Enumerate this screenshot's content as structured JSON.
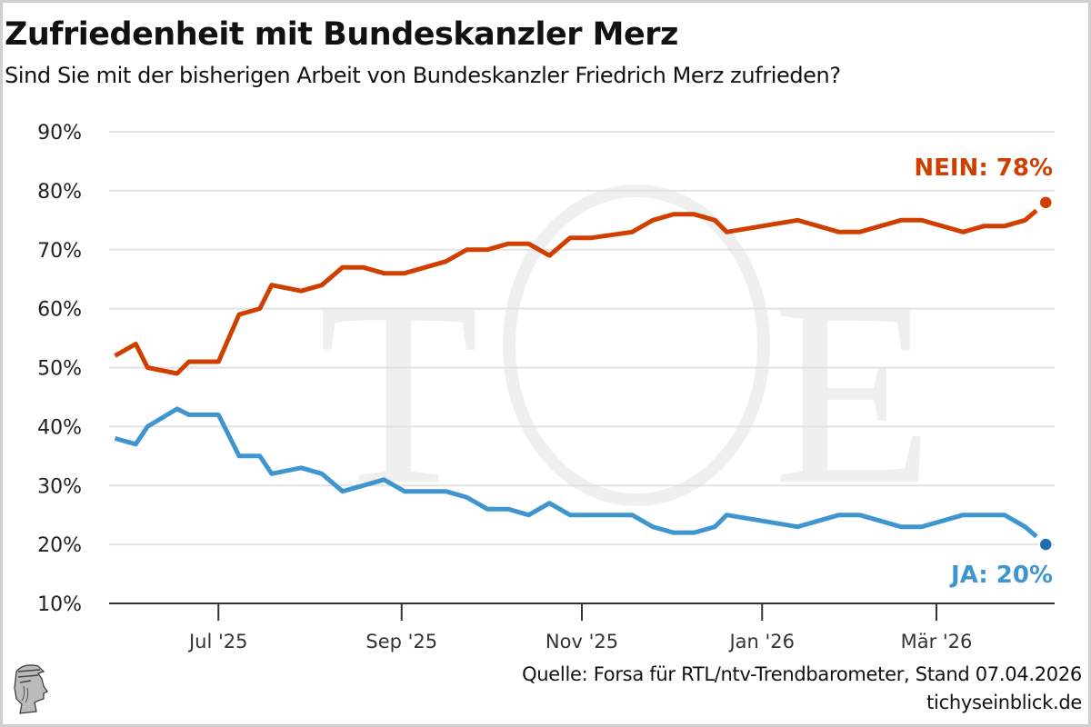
{
  "header": {
    "title": "Zufriedenheit mit Bundeskanzler Merz",
    "subtitle": "Sind Sie mit der bisherigen Arbeit von Bundeskanzler Friedrich Merz zufrieden?"
  },
  "footer": {
    "source": "Quelle: Forsa für RTL/ntv-Trendbarometer, Stand 07.04.2026",
    "site": "tichyseinblick.de"
  },
  "colors": {
    "nein": "#cf4000",
    "ja": "#3f95cf",
    "ja_dot": "#1f6fb0",
    "grid": "#e2e2e2",
    "axis": "#333333"
  },
  "chart_data": {
    "type": "line",
    "title": "Zufriedenheit mit Bundeskanzler Merz",
    "subtitle": "Sind Sie mit der bisherigen Arbeit von Bundeskanzler Friedrich Merz zufrieden?",
    "xlabel": "",
    "ylabel": "",
    "ylim": [
      10,
      90
    ],
    "yticks": [
      10,
      20,
      30,
      40,
      50,
      60,
      70,
      80,
      90
    ],
    "ytick_labels": [
      "10%",
      "20%",
      "30%",
      "40%",
      "50%",
      "60%",
      "70%",
      "80%",
      "90%"
    ],
    "xlim": [
      "2025-05-25",
      "2026-04-10"
    ],
    "xticks": [
      "2025-07-01",
      "2025-09-01",
      "2025-11-01",
      "2026-01-01",
      "2026-03-01"
    ],
    "xtick_labels": [
      "Jul '25",
      "Sep '25",
      "Nov '25",
      "Jan '26",
      "Mär '26"
    ],
    "grid": true,
    "x": [
      "2025-05-27",
      "2025-06-03",
      "2025-06-07",
      "2025-06-17",
      "2025-06-21",
      "2025-07-01",
      "2025-07-08",
      "2025-07-15",
      "2025-07-19",
      "2025-07-29",
      "2025-08-05",
      "2025-08-12",
      "2025-08-19",
      "2025-08-26",
      "2025-09-02",
      "2025-09-16",
      "2025-09-23",
      "2025-09-30",
      "2025-10-07",
      "2025-10-14",
      "2025-10-21",
      "2025-10-28",
      "2025-11-04",
      "2025-11-18",
      "2025-11-25",
      "2025-12-02",
      "2025-12-09",
      "2025-12-16",
      "2025-12-20",
      "2026-01-13",
      "2026-01-27",
      "2026-02-03",
      "2026-02-17",
      "2026-02-24",
      "2026-03-10",
      "2026-03-17",
      "2026-03-24",
      "2026-03-31",
      "2026-04-07"
    ],
    "series": [
      {
        "name": "NEIN",
        "label": "NEIN: 78%",
        "values": [
          52,
          54,
          50,
          49,
          51,
          51,
          59,
          60,
          64,
          63,
          64,
          67,
          67,
          66,
          66,
          68,
          70,
          70,
          71,
          71,
          69,
          72,
          72,
          73,
          75,
          76,
          76,
          75,
          73,
          75,
          73,
          73,
          75,
          75,
          73,
          74,
          74,
          75,
          78
        ]
      },
      {
        "name": "JA",
        "label": "JA: 20%",
        "values": [
          38,
          37,
          40,
          43,
          42,
          42,
          35,
          35,
          32,
          33,
          32,
          29,
          30,
          31,
          29,
          29,
          28,
          26,
          26,
          25,
          27,
          25,
          25,
          25,
          23,
          22,
          22,
          23,
          25,
          23,
          25,
          25,
          23,
          23,
          25,
          25,
          25,
          23,
          20
        ]
      }
    ]
  }
}
